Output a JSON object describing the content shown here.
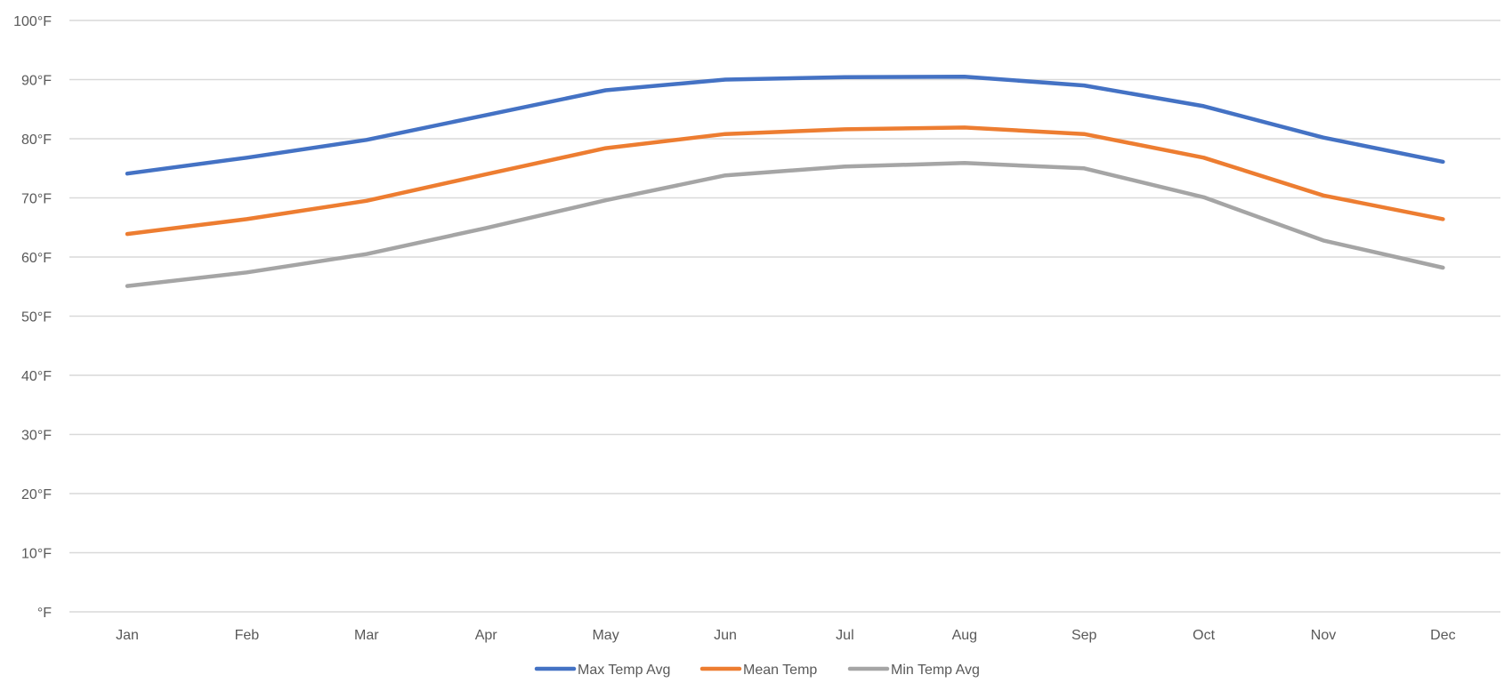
{
  "chart_data": {
    "type": "line",
    "categories": [
      "Jan",
      "Feb",
      "Mar",
      "Apr",
      "May",
      "Jun",
      "Jul",
      "Aug",
      "Sep",
      "Oct",
      "Nov",
      "Dec"
    ],
    "yticks": [
      "°F",
      "10°F",
      "20°F",
      "30°F",
      "40°F",
      "50°F",
      "60°F",
      "70°F",
      "80°F",
      "90°F",
      "100°F"
    ],
    "ylim": [
      0,
      100
    ],
    "grid": true,
    "legend_position": "bottom",
    "series": [
      {
        "name": "Max Temp Avg",
        "color": "#4472C4",
        "values": [
          74.1,
          76.8,
          79.8,
          84.0,
          88.2,
          90.0,
          90.4,
          90.5,
          89.0,
          85.5,
          80.2,
          76.1
        ]
      },
      {
        "name": "Mean Temp",
        "color": "#ED7D31",
        "values": [
          63.9,
          66.4,
          69.5,
          74.0,
          78.4,
          80.8,
          81.6,
          81.9,
          80.8,
          76.8,
          70.4,
          66.4
        ]
      },
      {
        "name": "Min Temp Avg",
        "color": "#A5A5A5",
        "values": [
          55.1,
          57.4,
          60.5,
          64.9,
          69.6,
          73.8,
          75.3,
          75.9,
          75.0,
          70.1,
          62.8,
          58.2
        ]
      }
    ]
  }
}
